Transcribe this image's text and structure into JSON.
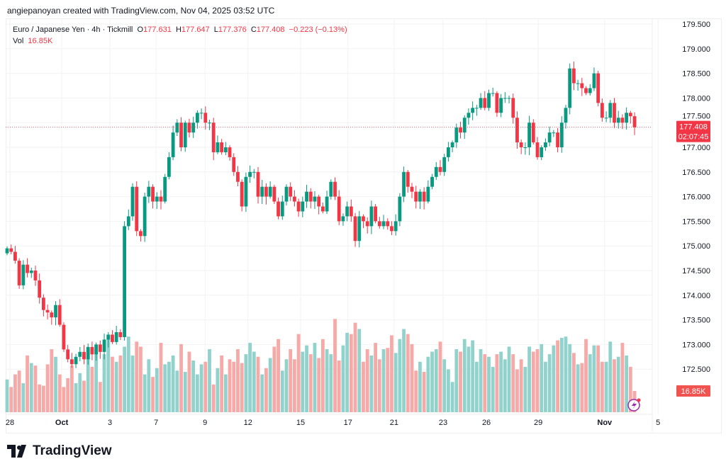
{
  "credit": "angiepanoyan created with TradingView.com, Nov 04, 2025 03:52 UTC",
  "legend": {
    "symbol": "Euro / Japanese Yen · 4h · Tickmill",
    "o_label": "O",
    "o": "177.631",
    "h_label": "H",
    "h": "177.647",
    "l_label": "L",
    "l": "177.376",
    "c_label": "C",
    "c": "177.408",
    "change": "−0.223 (−0.13%)",
    "vol_label": "Vol",
    "vol": "16.85K"
  },
  "logo_text": "TradingView",
  "colors": {
    "up": "#089981",
    "down": "#f23645",
    "up_vol": "#92d2cc",
    "down_vol": "#f7a9a7",
    "grid": "#f2f2f2"
  },
  "chart_data": {
    "type": "candlestick",
    "title": "Euro / Japanese Yen · 4h · Tickmill",
    "ylim": [
      171.9,
      179.8
    ],
    "y_ticks": [
      "179.500",
      "179.000",
      "178.500",
      "178.000",
      "177.500",
      "177.000",
      "176.500",
      "176.000",
      "175.500",
      "175.000",
      "174.500",
      "174.000",
      "173.500",
      "173.000",
      "172.500"
    ],
    "x_ticks": [
      {
        "label": "28",
        "index": 0.7
      },
      {
        "label": "Oct",
        "index": 13.5,
        "bold": true
      },
      {
        "label": "3",
        "index": 25.4
      },
      {
        "label": "7",
        "index": 36.8
      },
      {
        "label": "9",
        "index": 48.9
      },
      {
        "label": "12",
        "index": 59.5
      },
      {
        "label": "15",
        "index": 72.5
      },
      {
        "label": "17",
        "index": 84.2
      },
      {
        "label": "21",
        "index": 95.6
      },
      {
        "label": "23",
        "index": 107.7
      },
      {
        "label": "26",
        "index": 118.4
      },
      {
        "label": "29",
        "index": 131.2
      },
      {
        "label": "Nov",
        "index": 147.6,
        "bold": true
      },
      {
        "label": "5",
        "index": 160.8
      }
    ],
    "first_open": 174.85,
    "closes": [
      174.95,
      174.88,
      174.7,
      174.2,
      174.62,
      174.45,
      174.5,
      174.3,
      173.95,
      173.7,
      173.65,
      173.55,
      173.8,
      173.4,
      172.9,
      172.7,
      172.6,
      172.75,
      172.85,
      172.7,
      172.95,
      172.8,
      173.0,
      172.85,
      173.1,
      173.2,
      173.05,
      173.25,
      173.15,
      175.4,
      175.6,
      176.2,
      175.3,
      175.2,
      176.0,
      176.2,
      175.9,
      176.0,
      175.9,
      176.4,
      176.8,
      177.3,
      177.5,
      177.0,
      177.5,
      177.3,
      177.5,
      177.7,
      177.7,
      177.5,
      177.5,
      176.9,
      177.1,
      176.9,
      177.0,
      176.8,
      176.5,
      176.3,
      175.8,
      176.4,
      176.5,
      176.5,
      176.0,
      176.2,
      176.0,
      176.2,
      175.9,
      175.6,
      175.9,
      176.2,
      176.0,
      175.9,
      175.7,
      175.9,
      176.1,
      175.9,
      176.0,
      175.8,
      175.7,
      176.0,
      176.3,
      176.0,
      175.5,
      175.6,
      175.8,
      175.6,
      175.1,
      175.6,
      175.5,
      175.4,
      175.8,
      175.5,
      175.4,
      175.5,
      175.4,
      175.3,
      175.5,
      176.0,
      176.5,
      176.2,
      176.1,
      175.9,
      176.1,
      175.9,
      176.2,
      176.4,
      176.6,
      176.5,
      176.8,
      177.0,
      177.1,
      177.4,
      177.3,
      177.6,
      177.7,
      177.8,
      177.8,
      178.0,
      177.8,
      178.1,
      178.1,
      177.7,
      178.0,
      178.0,
      178.0,
      177.6,
      177.1,
      177.0,
      177.0,
      177.5,
      177.1,
      176.8,
      177.0,
      177.1,
      177.3,
      177.3,
      177.0,
      177.5,
      177.8,
      178.6,
      178.3,
      178.3,
      178.2,
      178.1,
      178.2,
      178.5,
      177.9,
      177.6,
      177.6,
      177.9,
      177.5,
      177.6,
      177.5,
      177.7,
      177.631,
      177.408
    ],
    "volumes_k": [
      26,
      20,
      30,
      33,
      23,
      45,
      39,
      37,
      22,
      21,
      38,
      50,
      44,
      30,
      20,
      27,
      37,
      23,
      31,
      25,
      43,
      36,
      50,
      24,
      46,
      58,
      44,
      40,
      45,
      52,
      60,
      45,
      56,
      52,
      30,
      42,
      28,
      35,
      55,
      38,
      40,
      45,
      33,
      54,
      32,
      48,
      41,
      30,
      38,
      40,
      50,
      22,
      35,
      45,
      30,
      42,
      40,
      50,
      39,
      46,
      55,
      48,
      44,
      30,
      35,
      43,
      52,
      58,
      33,
      42,
      50,
      42,
      62,
      48,
      53,
      46,
      55,
      43,
      58,
      50,
      46,
      74,
      41,
      53,
      63,
      62,
      71,
      66,
      40,
      50,
      45,
      55,
      42,
      50,
      51,
      61,
      47,
      58,
      66,
      62,
      54,
      33,
      40,
      32,
      44,
      48,
      50,
      56,
      42,
      34,
      24,
      50,
      48,
      58,
      52,
      57,
      40,
      50,
      46,
      44,
      36,
      46,
      48,
      42,
      52,
      46,
      34,
      42,
      36,
      52,
      48,
      50,
      54,
      40,
      46,
      53,
      57,
      59,
      60,
      54,
      47,
      38,
      39,
      58,
      46,
      53,
      53,
      40,
      40,
      56,
      42,
      44,
      55,
      45,
      36,
      16.85
    ],
    "last_price_label": "177.408",
    "countdown": "02:07:45",
    "last_volume_label": "16.85K"
  }
}
